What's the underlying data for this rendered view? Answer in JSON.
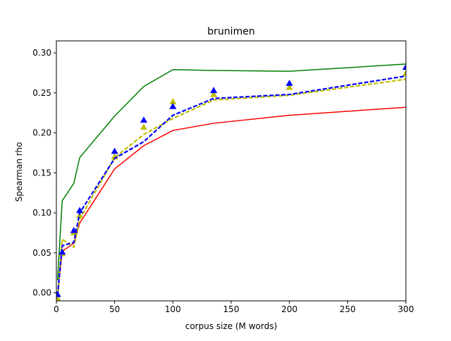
{
  "chart_data": {
    "type": "line",
    "title": "brunimen",
    "xlabel": "corpus size (M words)",
    "ylabel": "Spearman rho",
    "xlim": [
      0,
      300
    ],
    "ylim": [
      -0.01,
      0.315
    ],
    "xticks": [
      0,
      50,
      100,
      150,
      200,
      250,
      300
    ],
    "yticks": [
      0.0,
      0.05,
      0.1,
      0.15,
      0.2,
      0.25,
      0.3
    ],
    "xtick_labels": [
      "0",
      "50",
      "100",
      "150",
      "200",
      "250",
      "300"
    ],
    "ytick_labels": [
      "0.00",
      "0.05",
      "0.10",
      "0.15",
      "0.20",
      "0.25",
      "0.30"
    ],
    "grid": false,
    "legend": null,
    "series": [
      {
        "color": "#008000",
        "style": "solid",
        "x": [
          1,
          5,
          15,
          20,
          50,
          75,
          100,
          135,
          200,
          300
        ],
        "y": [
          0.016,
          0.115,
          0.137,
          0.169,
          0.221,
          0.258,
          0.279,
          0.278,
          0.277,
          0.286
        ]
      },
      {
        "color": "#ff0000",
        "style": "solid",
        "x": [
          1,
          5,
          15,
          20,
          50,
          75,
          100,
          135,
          200,
          300
        ],
        "y": [
          -0.005,
          0.052,
          0.062,
          0.087,
          0.155,
          0.184,
          0.203,
          0.212,
          0.222,
          0.232
        ]
      },
      {
        "color": "#bfbf00",
        "style": "dashed",
        "marker": "triangle",
        "x": [
          1,
          5,
          15,
          20,
          50,
          75,
          100,
          135,
          200,
          300
        ],
        "y": [
          -0.007,
          0.067,
          0.057,
          0.092,
          0.169,
          0.198,
          0.218,
          0.241,
          0.247,
          0.267
        ],
        "marker_y": [
          -0.007,
          0.049,
          0.075,
          0.097,
          0.17,
          0.207,
          0.239,
          0.248,
          0.257,
          0.274
        ]
      },
      {
        "color": "#0000ff",
        "style": "dashed",
        "marker": "triangle",
        "x": [
          1,
          5,
          15,
          20,
          50,
          75,
          100,
          135,
          200,
          300
        ],
        "y": [
          -0.003,
          0.059,
          0.063,
          0.1,
          0.168,
          0.189,
          0.222,
          0.243,
          0.248,
          0.271
        ],
        "marker_y": [
          -0.002,
          0.051,
          0.078,
          0.103,
          0.177,
          0.216,
          0.233,
          0.253,
          0.262,
          0.282
        ]
      }
    ]
  }
}
